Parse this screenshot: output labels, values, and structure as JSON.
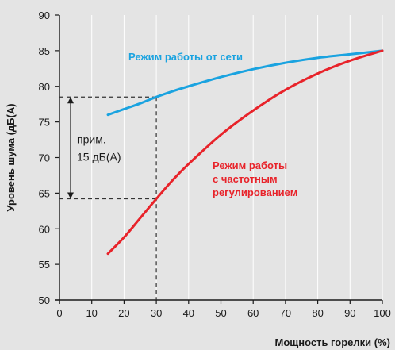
{
  "chart_data": {
    "type": "line",
    "xlabel": "Мощность горелки (%)",
    "ylabel": "Уровень шума (дБ(A)",
    "xlim": [
      0,
      100
    ],
    "ylim": [
      50,
      90
    ],
    "xticks": [
      0,
      10,
      20,
      30,
      40,
      50,
      60,
      70,
      80,
      90,
      100
    ],
    "yticks": [
      50,
      55,
      60,
      65,
      70,
      75,
      80,
      85,
      90
    ],
    "grid": "vertical",
    "series": [
      {
        "name": "Режим работы от сети",
        "label_lines": [
          "Режим работы от сети"
        ],
        "color": "#1aa3e0",
        "x": [
          15,
          20,
          25,
          30,
          35,
          40,
          50,
          60,
          70,
          80,
          90,
          100
        ],
        "y": [
          76,
          76.8,
          77.6,
          78.5,
          79.3,
          80,
          81.3,
          82.4,
          83.3,
          84,
          84.5,
          85
        ]
      },
      {
        "name": "Режим работы с частотным регулированием",
        "label_lines": [
          "Режим работы",
          "с частотным",
          "регулированием"
        ],
        "color": "#e8232a",
        "x": [
          15,
          20,
          25,
          30,
          35,
          40,
          50,
          60,
          70,
          80,
          90,
          100
        ],
        "y": [
          56.5,
          58.8,
          61.5,
          64.2,
          66.8,
          69.1,
          73.2,
          76.6,
          79.5,
          81.8,
          83.6,
          85
        ]
      }
    ],
    "annotation": {
      "lines": [
        "прим.",
        "15 дБ(A)"
      ],
      "x": 30,
      "y_high": 78.5,
      "y_low": 64.2
    }
  }
}
